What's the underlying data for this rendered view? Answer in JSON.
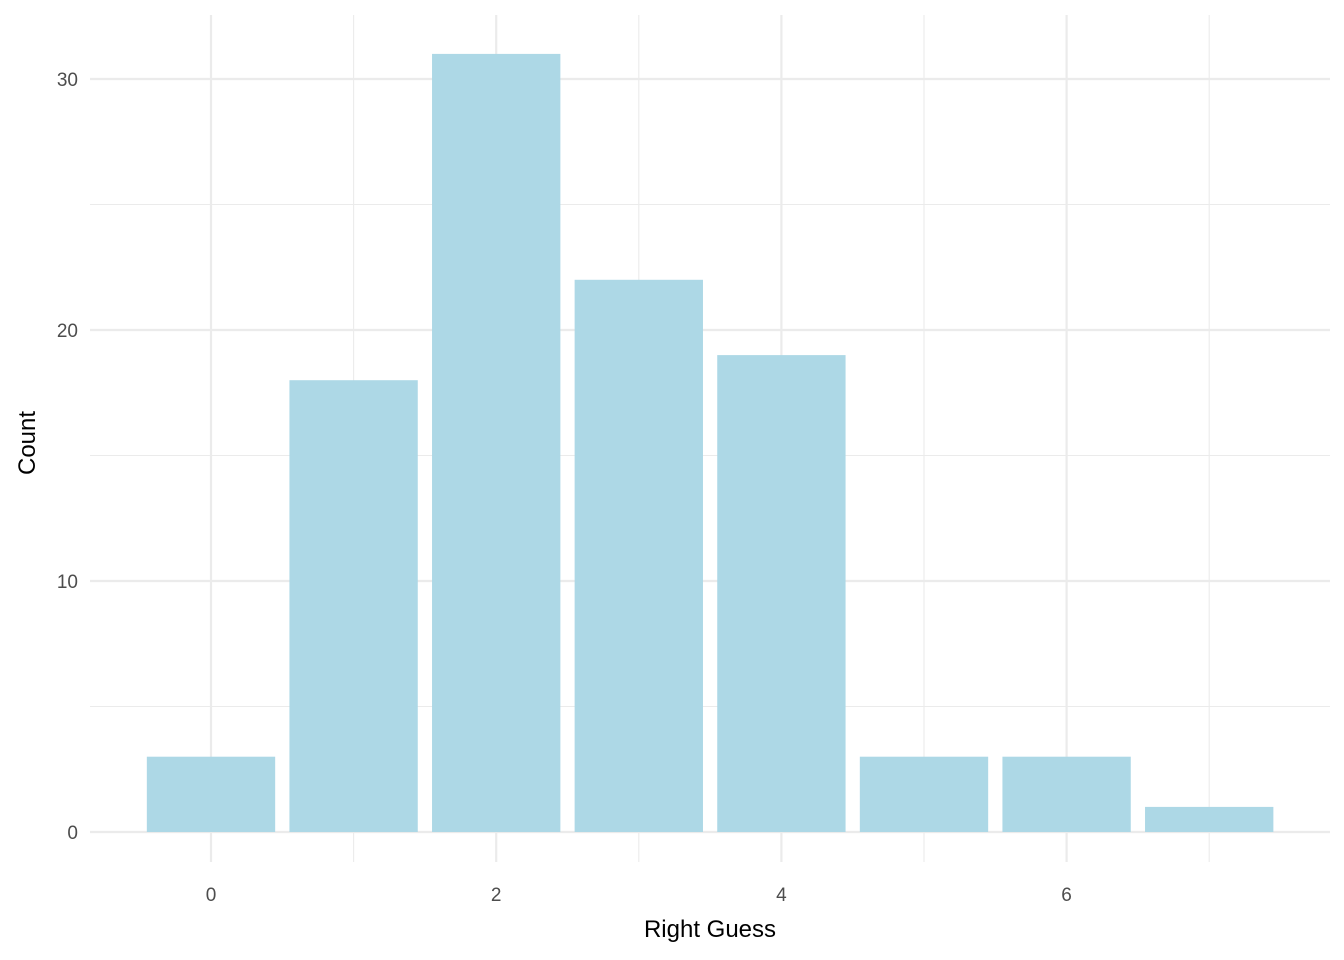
{
  "chart_data": {
    "type": "bar",
    "title": "",
    "xlabel": "Right Guess",
    "ylabel": "Count",
    "x": [
      0,
      1,
      2,
      3,
      4,
      5,
      6,
      7
    ],
    "values": [
      3,
      18,
      31,
      22,
      19,
      3,
      3,
      1
    ],
    "xlim": [
      -0.5,
      7.5
    ],
    "ylim": [
      0,
      31
    ],
    "x_ticks": [
      0,
      2,
      4,
      6
    ],
    "y_ticks": [
      0,
      10,
      20,
      30
    ],
    "x_minor_ticks": [
      1,
      3,
      5,
      7
    ],
    "y_minor_ticks": [
      5,
      15,
      25
    ],
    "grid": true,
    "legend": "none",
    "bar_color": "#add8e6",
    "grid_color": "#ebebeb",
    "background": "#ffffff"
  }
}
